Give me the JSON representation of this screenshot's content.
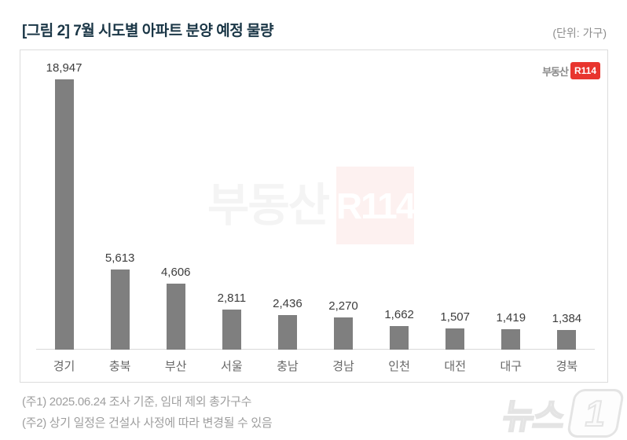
{
  "header": {
    "title": "[그림 2] 7월 시도별 아파트 분양 예정 물량",
    "unit": "(단위: 가구)"
  },
  "brand": {
    "prefix": "부동산",
    "badge": "R114",
    "badge_color": "#e8352e"
  },
  "watermark": {
    "text": "부동산",
    "badge": "R114"
  },
  "chart_data": {
    "type": "bar",
    "title": "7월 시도별 아파트 분양 예정 물량",
    "unit": "가구",
    "categories": [
      "경기",
      "충북",
      "부산",
      "서울",
      "충남",
      "경남",
      "인천",
      "대전",
      "대구",
      "경북"
    ],
    "values": [
      18947,
      5613,
      4606,
      2811,
      2436,
      2270,
      1662,
      1507,
      1419,
      1384
    ],
    "value_labels": [
      "18,947",
      "5,613",
      "4,606",
      "2,811",
      "2,436",
      "2,270",
      "1,662",
      "1,507",
      "1,419",
      "1,384"
    ],
    "bar_color": "#7f7f7f",
    "ylim": [
      0,
      19500
    ],
    "grid": false,
    "legend": "none"
  },
  "notes": {
    "note1": "(주1) 2025.06.24 조사 기준, 임대 제외 총가구수",
    "note2": "(주2) 상기 일정은 건설사 사정에 따라 변경될 수 있음"
  },
  "press_watermark": {
    "text": "뉴스",
    "one": "1"
  }
}
